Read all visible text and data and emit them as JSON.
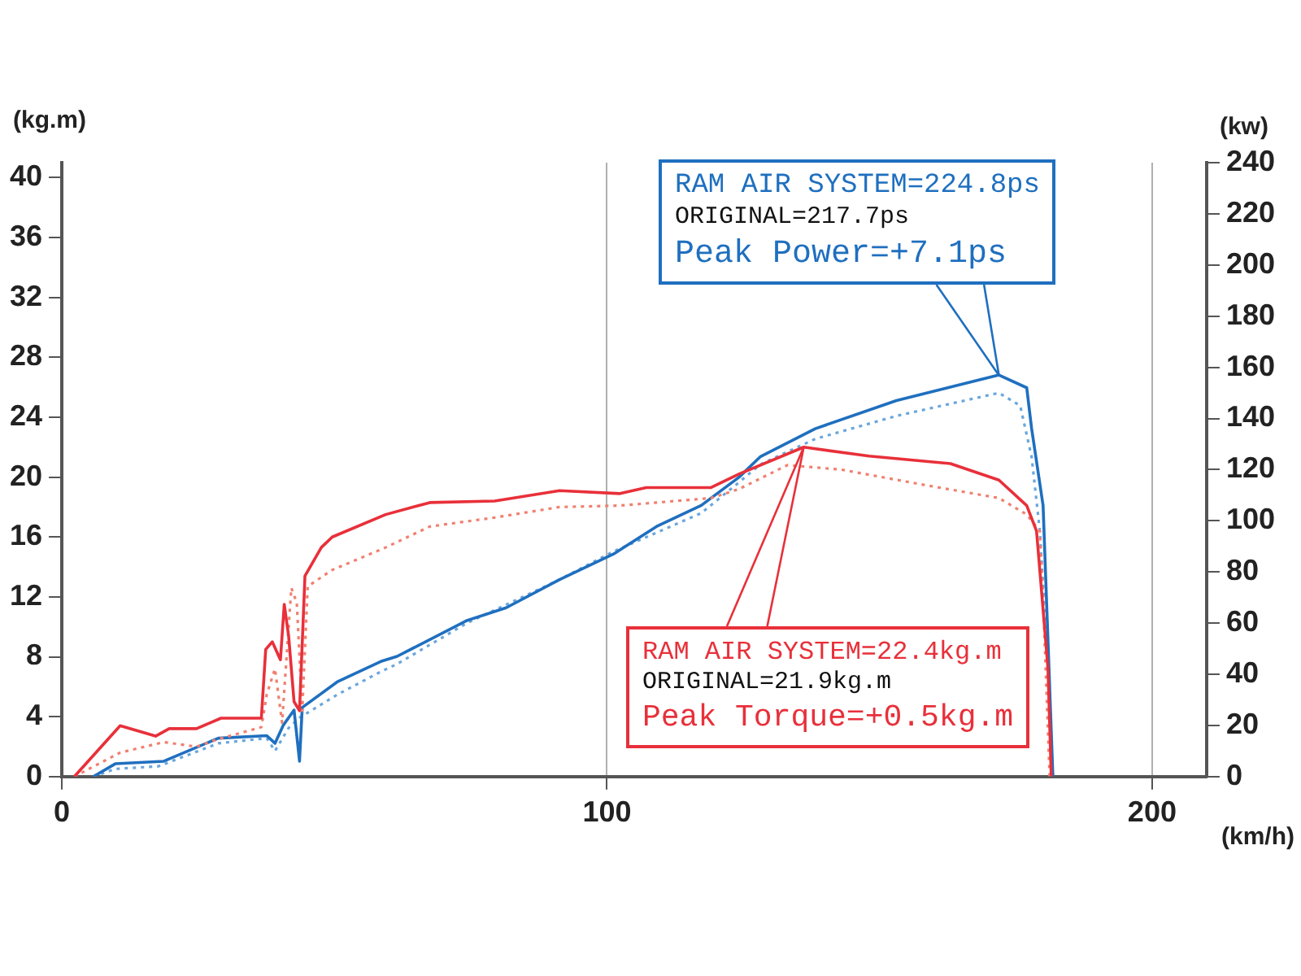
{
  "chart_data": {
    "type": "line",
    "xlabel": "(km/h)",
    "ylabel": "(kg.m)",
    "y2label": "(kw)",
    "xlim": [
      0,
      210
    ],
    "xticks": [
      0,
      100,
      200
    ],
    "ylim": [
      0,
      41
    ],
    "yticks": [
      0,
      4,
      8,
      12,
      16,
      20,
      24,
      28,
      32,
      36,
      40
    ],
    "y2lim": [
      0,
      240
    ],
    "y2ticks": [
      0,
      20,
      40,
      60,
      80,
      100,
      120,
      140,
      160,
      180,
      200,
      220,
      240
    ],
    "grid": "x",
    "legend": false,
    "marker": "none",
    "series": [
      {
        "color": "#e8303a",
        "line_style": "solid",
        "axis": "y",
        "x": [
          2.3,
          10.7,
          17.2,
          19.7,
          24.7,
          29.2,
          36.6,
          37.4,
          38.6,
          40.1,
          40.8,
          41.6,
          42.6,
          43.6,
          44.6,
          47.6,
          49.6,
          59.4,
          67.5,
          79.4,
          91.3,
          102.4,
          107.2,
          119.1,
          124.2,
          136.1,
          148.1,
          163.0,
          171.9,
          177.0,
          178.8,
          180.9,
          181.5
        ],
        "values": [
          0,
          3.4,
          2.7,
          3.2,
          3.2,
          3.9,
          3.9,
          8.5,
          9.0,
          7.8,
          11.5,
          9.4,
          5.0,
          4.4,
          13.4,
          15.3,
          16.0,
          17.5,
          18.3,
          18.4,
          19.1,
          18.9,
          19.3,
          19.3,
          20.2,
          22.0,
          21.4,
          20.9,
          19.8,
          18.1,
          16.4,
          7.2,
          0
        ]
      },
      {
        "color": "#f08070",
        "line_style": "dotted",
        "axis": "y",
        "x": [
          2.3,
          10.7,
          18.7,
          24.7,
          28.7,
          36.6,
          37.6,
          39.1,
          40.4,
          42.1,
          43.1,
          44.1,
          45.1,
          49.6,
          59.4,
          67.5,
          79.4,
          91.3,
          102.4,
          119.1,
          124.2,
          133.1,
          143.0,
          157.9,
          171.9,
          177.0,
          179.4,
          180.0,
          181.2
        ],
        "values": [
          0,
          1.6,
          2.3,
          2.0,
          2.5,
          3.3,
          5.5,
          7.2,
          3.6,
          12.6,
          11.6,
          4.4,
          12.7,
          13.8,
          15.3,
          16.7,
          17.3,
          18.0,
          18.1,
          18.6,
          19.2,
          20.8,
          20.5,
          19.5,
          18.6,
          17.5,
          16.4,
          12.0,
          0
        ]
      },
      {
        "color": "#1f6fbf",
        "line_style": "solid",
        "axis": "y2",
        "x": [
          5.8,
          9.8,
          18.7,
          28.7,
          37.6,
          39.1,
          40.6,
          42.6,
          43.6,
          44.1,
          50.5,
          58.5,
          61.5,
          74.3,
          81.5,
          91.3,
          101.2,
          109.3,
          117.3,
          124.2,
          128.1,
          138.2,
          153.1,
          171.9,
          177.0,
          177.9,
          180.0,
          180.9,
          181.8
        ],
        "values": [
          0,
          5,
          6,
          15,
          16,
          13,
          20,
          26,
          6,
          27,
          37,
          45,
          47,
          61,
          66,
          77,
          87,
          98,
          106,
          117,
          125,
          136,
          147,
          157,
          152,
          136,
          106,
          53,
          0
        ]
      },
      {
        "color": "#6aa6dc",
        "line_style": "dotted",
        "axis": "y2",
        "x": [
          5.8,
          9.8,
          17.7,
          28.7,
          37.6,
          39.1,
          41.6,
          43.6,
          50.5,
          58.5,
          61.5,
          74.3,
          91.3,
          101.2,
          117.3,
          124.2,
          128.1,
          138.2,
          153.1,
          171.9,
          175.8,
          177.9,
          179.4,
          180.6,
          181.8
        ],
        "values": [
          0,
          3,
          4,
          13,
          15,
          10,
          19,
          23,
          32,
          41,
          44,
          60,
          77,
          88,
          103,
          115,
          122,
          132,
          141,
          150,
          145,
          125,
          96,
          53,
          0
        ]
      }
    ],
    "annotations": [
      "RAM AIR SYSTEM=224.8ps",
      "ORIGINAL=217.7ps",
      {
        "text": "Peak Power=+7.1ps",
        "x": 171.9,
        "y": 26.8
      },
      {
        "text": "RAM AIR SYSTEM=22.4kg.m",
        "x": 136.1,
        "y": 22.0
      },
      "ORIGINAL=21.9kg.m",
      "Peak Torque=+0.5kg.m"
    ]
  }
}
